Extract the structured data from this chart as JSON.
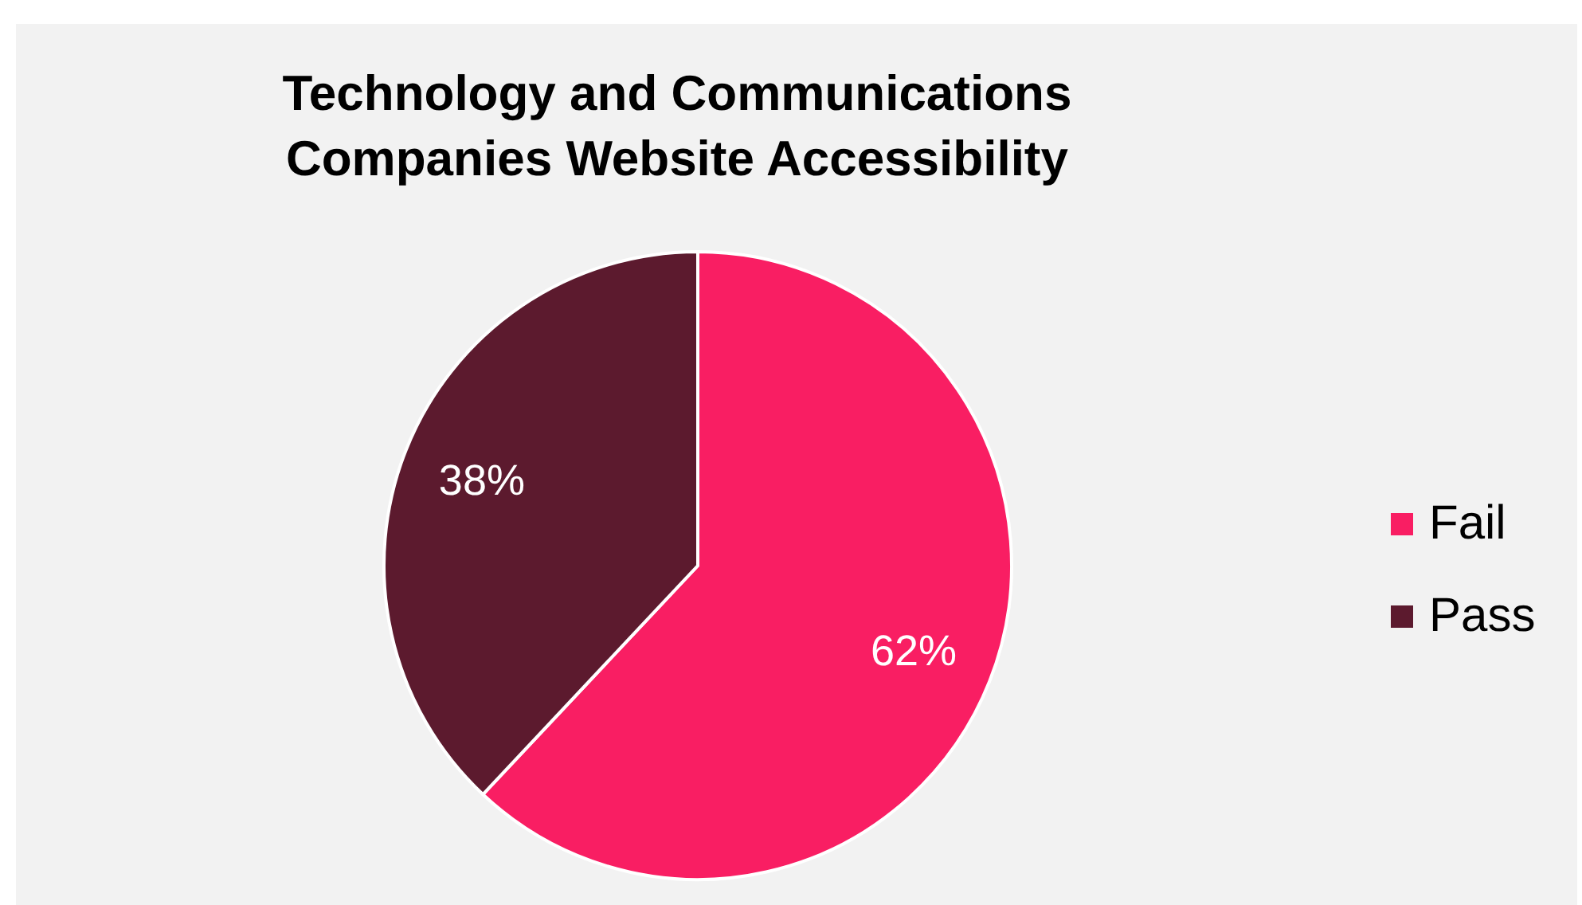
{
  "chart_data": {
    "type": "pie",
    "title": "Technology and Communications Companies Website Accessibility",
    "categories": [
      "Fail",
      "Pass"
    ],
    "values": [
      62,
      38
    ],
    "value_labels": [
      "62%",
      "38%"
    ],
    "colors": [
      "#f91e63",
      "#5c1a2e"
    ],
    "legend": "right"
  }
}
